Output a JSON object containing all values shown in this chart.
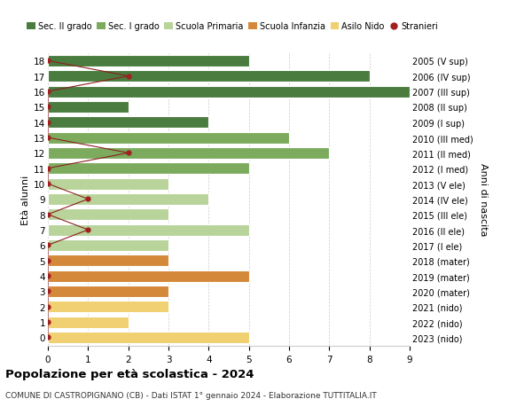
{
  "ages": [
    18,
    17,
    16,
    15,
    14,
    13,
    12,
    11,
    10,
    9,
    8,
    7,
    6,
    5,
    4,
    3,
    2,
    1,
    0
  ],
  "years": [
    "2005 (V sup)",
    "2006 (IV sup)",
    "2007 (III sup)",
    "2008 (II sup)",
    "2009 (I sup)",
    "2010 (III med)",
    "2011 (II med)",
    "2012 (I med)",
    "2013 (V ele)",
    "2014 (IV ele)",
    "2015 (III ele)",
    "2016 (II ele)",
    "2017 (I ele)",
    "2018 (mater)",
    "2019 (mater)",
    "2020 (mater)",
    "2021 (nido)",
    "2022 (nido)",
    "2023 (nido)"
  ],
  "bar_values": [
    5,
    8,
    9,
    2,
    4,
    6,
    7,
    5,
    3,
    4,
    3,
    5,
    3,
    3,
    5,
    3,
    3,
    2,
    5
  ],
  "bar_colors": [
    "#4a7c3f",
    "#4a7c3f",
    "#4a7c3f",
    "#4a7c3f",
    "#4a7c3f",
    "#7dab5e",
    "#7dab5e",
    "#7dab5e",
    "#b8d49a",
    "#b8d49a",
    "#b8d49a",
    "#b8d49a",
    "#b8d49a",
    "#d4883a",
    "#d4883a",
    "#d4883a",
    "#f0d070",
    "#f0d070",
    "#f0d070"
  ],
  "stranieri_x": [
    0,
    2,
    0,
    0,
    0,
    0,
    2,
    0,
    0,
    1,
    0,
    1,
    0,
    0,
    0,
    0,
    0,
    0,
    0
  ],
  "legend_labels": [
    "Sec. II grado",
    "Sec. I grado",
    "Scuola Primaria",
    "Scuola Infanzia",
    "Asilo Nido",
    "Stranieri"
  ],
  "legend_colors": [
    "#4a7c3f",
    "#7dab5e",
    "#b8d49a",
    "#d4883a",
    "#f0d070",
    "#a02020"
  ],
  "title": "Popolazione per età scolastica - 2024",
  "subtitle": "COMUNE DI CASTROPIGNANO (CB) - Dati ISTAT 1° gennaio 2024 - Elaborazione TUTTITALIA.IT",
  "ylabel_left": "Età alunni",
  "ylabel_right": "Anni di nascita",
  "xlim": [
    0,
    9
  ],
  "ylim_min": -0.55,
  "ylim_max": 18.55,
  "background_color": "#ffffff",
  "grid_color": "#cccccc",
  "bar_edge_color": "#ffffff",
  "stranieri_line_color": "#8b2020",
  "stranieri_dot_color": "#a02020",
  "bar_height": 0.75
}
